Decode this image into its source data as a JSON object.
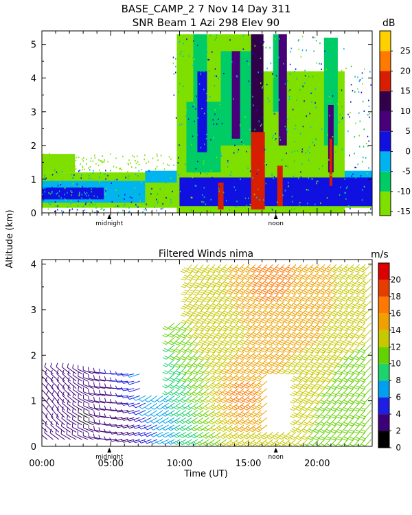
{
  "title": {
    "line1": "BASE_CAMP_2    7 Nov 14 Day 311",
    "line2": "SNR Beam 1 Azi 298 Elev 90"
  },
  "shared_ylabel": "Altitude (km)",
  "xlabel": "Time (UT)",
  "x_ticks": [
    "00:00",
    "05:00",
    "10:00",
    "15:00",
    "20:00"
  ],
  "x_tick_values": [
    0,
    5,
    10,
    15,
    20
  ],
  "x_range": [
    0,
    24
  ],
  "markers": [
    {
      "label": "midnight",
      "value": 4.9
    },
    {
      "label": "noon",
      "value": 17.0
    }
  ],
  "chart_data": [
    {
      "type": "heatmap",
      "title": "SNR Beam 1 Azi 298 Elev 90",
      "xlabel": "Time (UT)",
      "ylabel": "Altitude (km)",
      "xlim": [
        0,
        24
      ],
      "ylim": [
        0,
        5.4
      ],
      "y_ticks": [
        "0",
        "1",
        "2",
        "3",
        "4",
        "5"
      ],
      "y_tick_values": [
        0,
        1,
        2,
        3,
        4,
        5
      ],
      "colorbar": {
        "unit": "dB",
        "ticks": [
          "-15",
          "-10",
          "-5",
          "0",
          "5",
          "10",
          "15",
          "20",
          "25"
        ],
        "tick_values": [
          -15,
          -10,
          -5,
          0,
          5,
          10,
          15,
          20,
          25
        ],
        "range": [
          -16,
          30
        ],
        "bins": [
          {
            "from": -16,
            "to": -10,
            "color": "#7fe000"
          },
          {
            "from": -10,
            "to": -5,
            "color": "#00cc66"
          },
          {
            "from": -5,
            "to": 0,
            "color": "#00b4f0"
          },
          {
            "from": 0,
            "to": 5,
            "color": "#1010e0"
          },
          {
            "from": 5,
            "to": 10,
            "color": "#48007a"
          },
          {
            "from": 10,
            "to": 15,
            "color": "#30004a"
          },
          {
            "from": 15,
            "to": 20,
            "color": "#d81e00"
          },
          {
            "from": 20,
            "to": 25,
            "color": "#ff7a00"
          },
          {
            "from": 25,
            "to": 30,
            "color": "#ffd000"
          }
        ]
      },
      "regions": [
        {
          "t0": 0.0,
          "t1": 24.0,
          "z0": 0.15,
          "z1": 1.2,
          "snr": -12
        },
        {
          "t0": 0.0,
          "t1": 2.4,
          "z0": 1.2,
          "z1": 1.75,
          "snr": -12
        },
        {
          "t0": 0.0,
          "t1": 7.5,
          "z0": 0.3,
          "z1": 0.95,
          "snr": -2
        },
        {
          "t0": 0.0,
          "t1": 4.5,
          "z0": 0.4,
          "z1": 0.75,
          "snr": 3
        },
        {
          "t0": 7.5,
          "t1": 24.0,
          "z0": 0.9,
          "z1": 1.25,
          "snr": -2
        },
        {
          "t0": 9.8,
          "t1": 16.0,
          "z0": 0.0,
          "z1": 5.3,
          "snr": -12
        },
        {
          "t0": 16.0,
          "t1": 22.0,
          "z0": 0.0,
          "z1": 4.2,
          "snr": -12
        },
        {
          "t0": 10.5,
          "t1": 13.0,
          "z0": 1.2,
          "z1": 3.3,
          "snr": -7
        },
        {
          "t0": 11.0,
          "t1": 12.0,
          "z0": 1.8,
          "z1": 5.3,
          "snr": -7
        },
        {
          "t0": 13.0,
          "t1": 15.5,
          "z0": 2.0,
          "z1": 4.8,
          "snr": -7
        },
        {
          "t0": 16.8,
          "t1": 17.8,
          "z0": 3.0,
          "z1": 5.3,
          "snr": -7
        },
        {
          "t0": 20.5,
          "t1": 21.5,
          "z0": 2.0,
          "z1": 5.2,
          "snr": -7
        },
        {
          "t0": 11.3,
          "t1": 12.0,
          "z0": 1.8,
          "z1": 4.2,
          "snr": 3
        },
        {
          "t0": 13.8,
          "t1": 14.4,
          "z0": 2.2,
          "z1": 4.8,
          "snr": 7
        },
        {
          "t0": 15.2,
          "t1": 16.1,
          "z0": 1.4,
          "z1": 5.3,
          "snr": 12
        },
        {
          "t0": 17.2,
          "t1": 17.8,
          "z0": 2.0,
          "z1": 5.3,
          "snr": 7
        },
        {
          "t0": 20.8,
          "t1": 21.2,
          "z0": 1.2,
          "z1": 3.2,
          "snr": 7
        },
        {
          "t0": 10.0,
          "t1": 24.0,
          "z0": 0.2,
          "z1": 1.05,
          "snr": 3
        },
        {
          "t0": 15.2,
          "t1": 16.2,
          "z0": 0.1,
          "z1": 2.4,
          "snr": 17
        },
        {
          "t0": 17.1,
          "t1": 17.5,
          "z0": 0.2,
          "z1": 1.4,
          "snr": 17
        },
        {
          "t0": 12.8,
          "t1": 13.2,
          "z0": 0.1,
          "z1": 0.9,
          "snr": 17
        },
        {
          "t0": 20.9,
          "t1": 21.1,
          "z0": 0.8,
          "z1": 2.2,
          "snr": 17
        }
      ]
    },
    {
      "type": "barbs",
      "title": "Filtered Winds nima",
      "xlabel": "Time (UT)",
      "ylabel": "Altitude (km)",
      "xlim": [
        0,
        24
      ],
      "ylim": [
        0,
        4.1
      ],
      "y_ticks": [
        "0",
        "1",
        "2",
        "3",
        "4"
      ],
      "y_tick_values": [
        0,
        1,
        2,
        3,
        4
      ],
      "colorbar": {
        "unit": "m/s",
        "ticks": [
          "0",
          "2",
          "4",
          "6",
          "8",
          "10",
          "12",
          "14",
          "16",
          "18",
          "20"
        ],
        "tick_values": [
          0,
          2,
          4,
          6,
          8,
          10,
          12,
          14,
          16,
          18,
          20
        ],
        "range": [
          0,
          22
        ],
        "colors": [
          "#000000",
          "#3c0078",
          "#1e1ee6",
          "#00a0f0",
          "#1ed26e",
          "#64d200",
          "#c8c800",
          "#f0a000",
          "#ff7800",
          "#e63c00",
          "#dc0000"
        ]
      },
      "wind_samples": [
        {
          "t": 1.0,
          "z": 0.8,
          "speed": 4,
          "dir": 330
        },
        {
          "t": 2.0,
          "z": 1.2,
          "speed": 3,
          "dir": 320
        },
        {
          "t": 3.5,
          "z": 0.6,
          "speed": 1,
          "dir": 300
        },
        {
          "t": 5.0,
          "z": 1.0,
          "speed": 3,
          "dir": 280
        },
        {
          "t": 6.5,
          "z": 0.4,
          "speed": 2,
          "dir": 250
        },
        {
          "t": 8.5,
          "z": 1.0,
          "speed": 7,
          "dir": 230
        },
        {
          "t": 10.5,
          "z": 1.8,
          "speed": 10,
          "dir": 220
        },
        {
          "t": 11.5,
          "z": 3.5,
          "speed": 14,
          "dir": 215
        },
        {
          "t": 13.0,
          "z": 2.5,
          "speed": 14,
          "dir": 220
        },
        {
          "t": 15.0,
          "z": 1.2,
          "speed": 18,
          "dir": 230
        },
        {
          "t": 17.0,
          "z": 3.8,
          "speed": 18,
          "dir": 225
        },
        {
          "t": 19.0,
          "z": 3.0,
          "speed": 16,
          "dir": 225
        },
        {
          "t": 21.0,
          "z": 2.0,
          "speed": 14,
          "dir": 220
        },
        {
          "t": 22.5,
          "z": 1.5,
          "speed": 10,
          "dir": 225
        },
        {
          "t": 23.5,
          "z": 0.5,
          "speed": 10,
          "dir": 220
        }
      ]
    }
  ],
  "panel2_title": "Filtered Winds nima"
}
